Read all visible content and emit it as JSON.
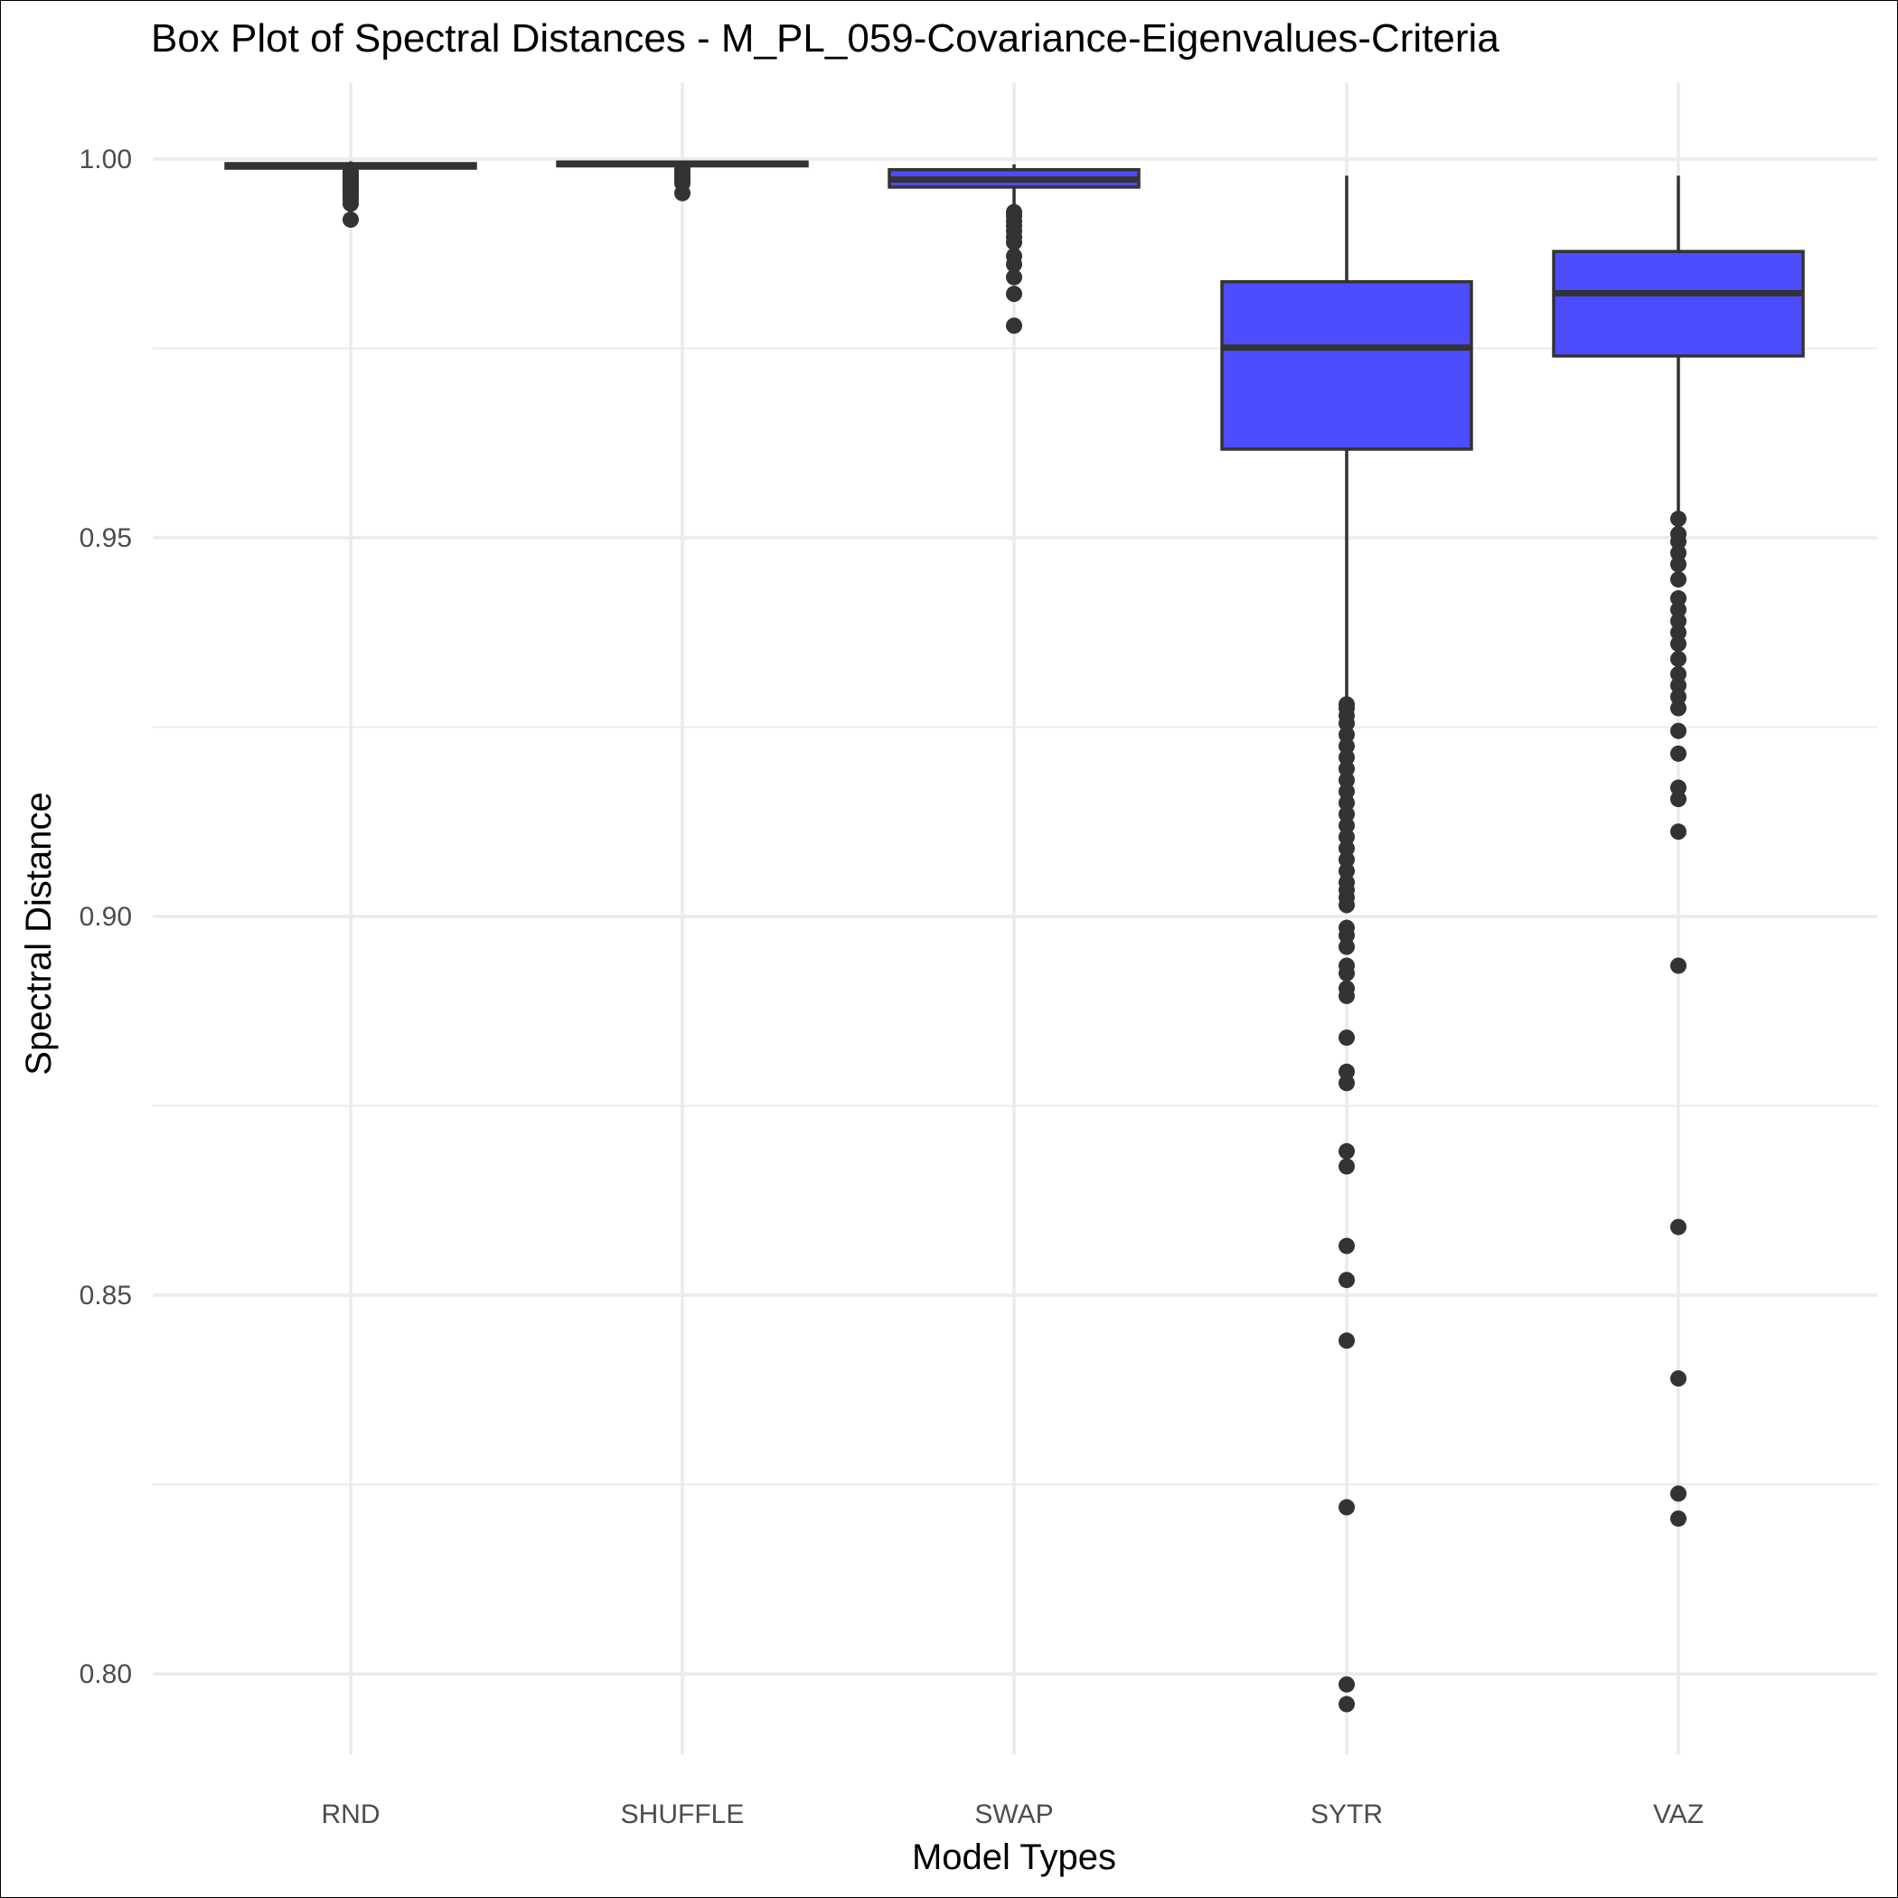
{
  "chart_data": {
    "type": "box",
    "title": "Box Plot of Spectral Distances -  M_PL_059-Covariance-Eigenvalues-Criteria",
    "xlabel": "Model Types",
    "ylabel": "Spectral Distance",
    "categories": [
      "RND",
      "SHUFFLE",
      "SWAP",
      "SYTR",
      "VAZ"
    ],
    "ylim": [
      0.79,
      1.01
    ],
    "yticks": [
      0.8,
      0.85,
      0.9,
      0.95,
      1.0
    ],
    "ytick_labels": [
      "0.80",
      "0.85",
      "0.90",
      "0.95",
      "1.00"
    ],
    "grid": true,
    "legend": "none",
    "colors": {
      "box_fill": "#4d4dff",
      "line": "#333333",
      "grid": "#ebebeb",
      "background": "#ffffff"
    },
    "boxes": [
      {
        "category": "RND",
        "whisker_low": 0.9987,
        "q1": 0.9988,
        "median": 0.9991,
        "q3": 0.9994,
        "whisker_high": 0.9997,
        "outliers": [
          0.992,
          0.9941,
          0.9946,
          0.995,
          0.9953,
          0.9957,
          0.996,
          0.9963,
          0.9966,
          0.9969,
          0.9972,
          0.9975,
          0.9978,
          0.9981,
          0.9984
        ]
      },
      {
        "category": "SHUFFLE",
        "whisker_low": 0.999,
        "q1": 0.9991,
        "median": 0.9994,
        "q3": 0.9996,
        "whisker_high": 0.9998,
        "outliers": [
          0.9955,
          0.9968,
          0.9972,
          0.9976,
          0.998,
          0.9984,
          0.9987
        ]
      },
      {
        "category": "SWAP",
        "whisker_low": 0.994,
        "q1": 0.9963,
        "median": 0.9973,
        "q3": 0.9986,
        "whisker_high": 0.9993,
        "outliers": [
          0.978,
          0.9822,
          0.9844,
          0.9861,
          0.9872,
          0.989,
          0.9897,
          0.9905,
          0.9912,
          0.9918,
          0.9925,
          0.993
        ]
      },
      {
        "category": "SYTR",
        "whisker_low": 0.9285,
        "q1": 0.9617,
        "median": 0.9751,
        "q3": 0.9838,
        "whisker_high": 0.9978,
        "outliers": [
          0.796,
          0.7986,
          0.822,
          0.844,
          0.852,
          0.8565,
          0.867,
          0.869,
          0.878,
          0.8795,
          0.884,
          0.8895,
          0.8905,
          0.8925,
          0.8935,
          0.896,
          0.8975,
          0.8985,
          0.9015,
          0.9025,
          0.9035,
          0.9045,
          0.906,
          0.9075,
          0.909,
          0.9105,
          0.912,
          0.9135,
          0.915,
          0.9165,
          0.918,
          0.9195,
          0.921,
          0.9225,
          0.924,
          0.9255,
          0.9265,
          0.9275,
          0.928
        ]
      },
      {
        "category": "VAZ",
        "whisker_low": 0.9525,
        "q1": 0.974,
        "median": 0.9823,
        "q3": 0.9878,
        "whisker_high": 0.9978,
        "outliers": [
          0.8205,
          0.8238,
          0.839,
          0.859,
          0.8935,
          0.9112,
          0.9155,
          0.917,
          0.9215,
          0.9245,
          0.9275,
          0.929,
          0.9305,
          0.932,
          0.934,
          0.936,
          0.9375,
          0.939,
          0.9405,
          0.942,
          0.9445,
          0.9465,
          0.948,
          0.9495,
          0.9505,
          0.9525
        ]
      }
    ]
  }
}
